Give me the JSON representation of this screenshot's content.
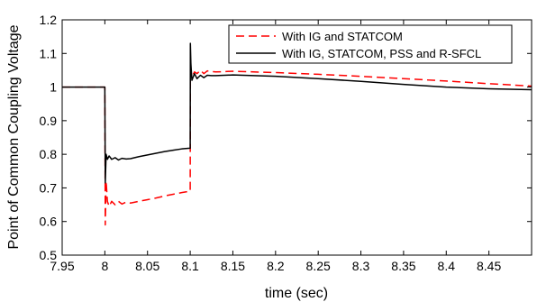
{
  "chart_data": {
    "type": "line",
    "title": "",
    "xlabel": "time (sec)",
    "ylabel": "Point of Common Coupling Voltage",
    "xlim": [
      7.95,
      8.5
    ],
    "ylim": [
      0.5,
      1.2
    ],
    "xticks": [
      "7.95",
      "8",
      "8.05",
      "8.1",
      "8.15",
      "8.2",
      "8.25",
      "8.3",
      "8.35",
      "8.4",
      "8.45"
    ],
    "xtick_values": [
      7.95,
      8.0,
      8.05,
      8.1,
      8.15,
      8.2,
      8.25,
      8.3,
      8.35,
      8.4,
      8.45
    ],
    "yticks": [
      "0.5",
      "0.6",
      "0.7",
      "0.8",
      "0.9",
      "1",
      "1.1",
      "1.2"
    ],
    "ytick_values": [
      0.5,
      0.6,
      0.7,
      0.8,
      0.9,
      1.0,
      1.1,
      1.2
    ],
    "grid": false,
    "legend_position": "top-right",
    "series": [
      {
        "name": "With IG and STATCOM",
        "color": "#ff0000",
        "dash": "dashed",
        "x": [
          7.95,
          7.9995,
          8.0,
          8.0005,
          8.0015,
          8.003,
          8.005,
          8.008,
          8.012,
          8.016,
          8.02,
          8.025,
          8.03,
          8.04,
          8.05,
          8.06,
          8.07,
          8.08,
          8.09,
          8.0995,
          8.1,
          8.1002,
          8.1008,
          8.102,
          8.105,
          8.108,
          8.112,
          8.116,
          8.12,
          8.125,
          8.13,
          8.15,
          8.2,
          8.25,
          8.3,
          8.35,
          8.4,
          8.45,
          8.5
        ],
        "y": [
          1.0,
          1.0,
          1.0,
          0.59,
          0.72,
          0.66,
          0.645,
          0.66,
          0.65,
          0.66,
          0.652,
          0.658,
          0.655,
          0.66,
          0.665,
          0.67,
          0.676,
          0.681,
          0.686,
          0.69,
          0.69,
          1.02,
          1.045,
          1.03,
          1.045,
          1.04,
          1.05,
          1.04,
          1.048,
          1.046,
          1.045,
          1.047,
          1.043,
          1.038,
          1.032,
          1.025,
          1.018,
          1.01,
          1.003
        ]
      },
      {
        "name": "With IG, STATCOM, PSS and R-SFCL",
        "color": "#000000",
        "dash": "solid",
        "x": [
          7.95,
          7.9995,
          8.0,
          8.0005,
          8.0015,
          8.003,
          8.005,
          8.008,
          8.012,
          8.016,
          8.02,
          8.025,
          8.03,
          8.04,
          8.05,
          8.06,
          8.07,
          8.08,
          8.09,
          8.0995,
          8.1,
          8.1002,
          8.1008,
          8.102,
          8.105,
          8.108,
          8.112,
          8.116,
          8.12,
          8.125,
          8.13,
          8.15,
          8.2,
          8.25,
          8.3,
          8.35,
          8.4,
          8.45,
          8.5
        ],
        "y": [
          1.0,
          1.0,
          1.0,
          0.715,
          0.8,
          0.785,
          0.795,
          0.785,
          0.79,
          0.783,
          0.788,
          0.786,
          0.787,
          0.793,
          0.798,
          0.803,
          0.808,
          0.812,
          0.816,
          0.818,
          0.818,
          1.13,
          1.07,
          1.02,
          1.04,
          1.025,
          1.035,
          1.028,
          1.035,
          1.034,
          1.034,
          1.036,
          1.032,
          1.025,
          1.017,
          1.008,
          1.0,
          0.995,
          0.992
        ]
      }
    ]
  }
}
